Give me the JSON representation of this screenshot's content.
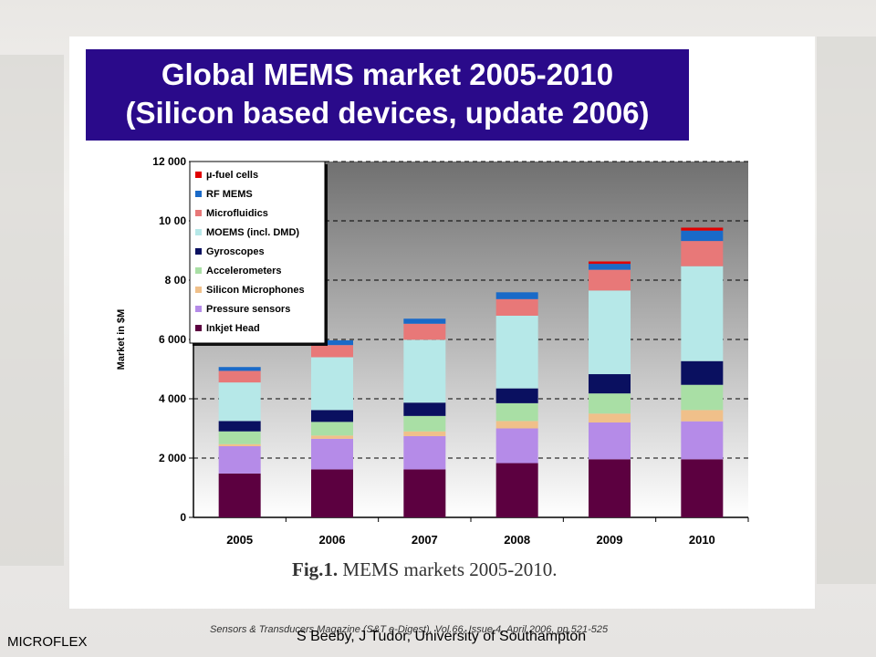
{
  "slide": {
    "title_line1": "Global MEMS market 2005-2010",
    "title_line2": "(Silicon based devices, update 2006)",
    "caption_label": "Fig.1.",
    "caption_text": " MEMS markets 2005-2010.",
    "source": "Sensors & Transducers Magazine (S&T e-Digest), Vol.66, Issue 4, April 2006, pp.521-525",
    "credit": "S Beeby, J Tudor, University of Southampton",
    "footer_left": "MICROFLEX"
  },
  "colors": {
    "title_bg": "#2a0a8a",
    "series": [
      "#5c0040",
      "#b58be8",
      "#f0c08a",
      "#a9dfa5",
      "#0a1060",
      "#b6e8e8",
      "#e87878",
      "#1a6ac8",
      "#e00000"
    ]
  },
  "chart_data": {
    "type": "bar",
    "stacked": true,
    "ylabel": "Market in $M",
    "ylim": [
      0,
      12000
    ],
    "yticks": [
      "0",
      "2 000",
      "4 000",
      "6 000",
      "8 00",
      "10 00",
      "12 000"
    ],
    "grid": true,
    "legend_position": "top-left",
    "categories": [
      "2005",
      "2006",
      "2007",
      "2008",
      "2009",
      "2010"
    ],
    "series": [
      {
        "name": "Inkjet Head",
        "values": [
          1480,
          1620,
          1620,
          1830,
          1960,
          1960
        ]
      },
      {
        "name": "Pressure sensors",
        "values": [
          920,
          1030,
          1120,
          1170,
          1240,
          1280
        ]
      },
      {
        "name": "Silicon Microphones",
        "values": [
          70,
          110,
          160,
          250,
          300,
          380
        ]
      },
      {
        "name": "Accelerometers",
        "values": [
          430,
          460,
          520,
          600,
          680,
          850
        ]
      },
      {
        "name": "Gyroscopes",
        "values": [
          350,
          400,
          450,
          500,
          650,
          800
        ]
      },
      {
        "name": "MOEMS (incl. DMD)",
        "values": [
          1300,
          1780,
          2120,
          2450,
          2820,
          3200
        ]
      },
      {
        "name": "Microfluidics",
        "values": [
          390,
          410,
          540,
          560,
          700,
          850
        ]
      },
      {
        "name": "RF MEMS",
        "values": [
          130,
          160,
          170,
          230,
          200,
          350
        ]
      },
      {
        "name": "µ-fuel cells",
        "values": [
          0,
          0,
          0,
          0,
          80,
          100
        ]
      }
    ]
  }
}
